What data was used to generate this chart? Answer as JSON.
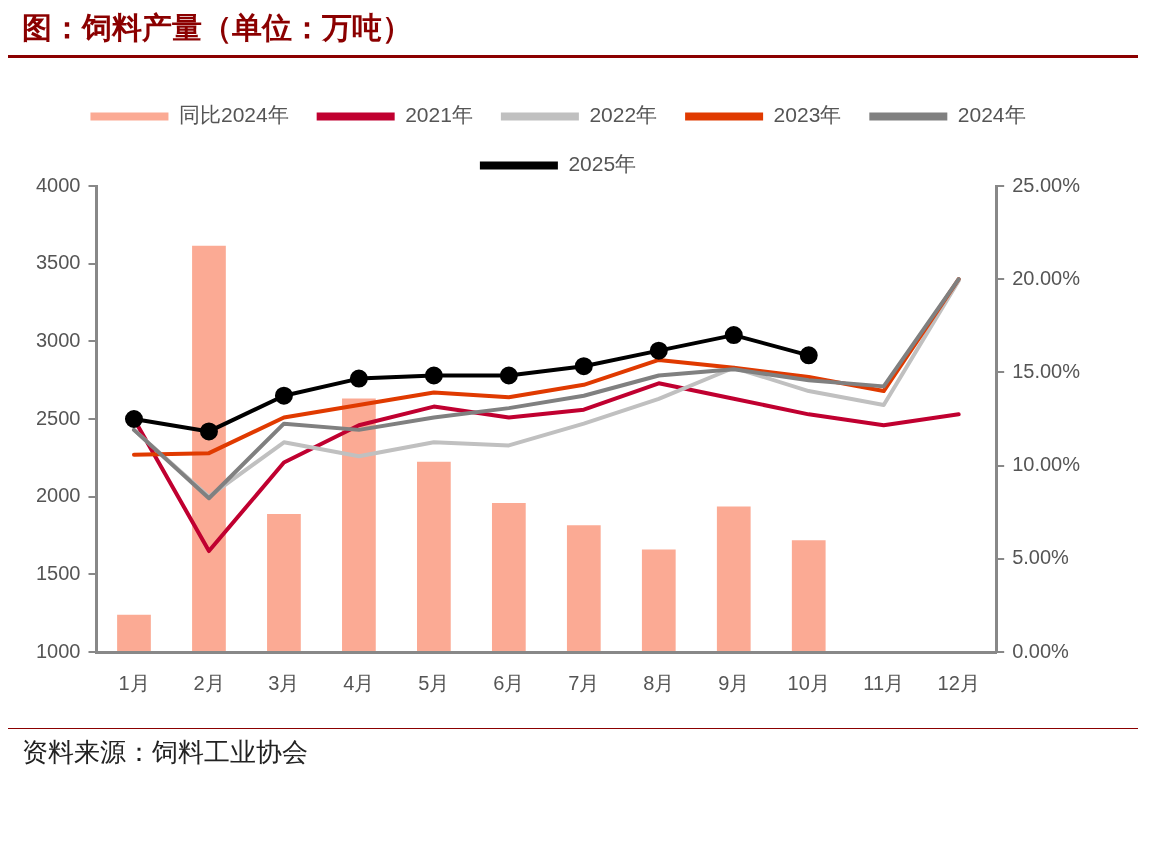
{
  "chart_data": {
    "type": "line",
    "title": "图：饲料产量（单位：万吨）",
    "annotations": [
      "资料来源：饲料工业协会"
    ],
    "categories": [
      "1月",
      "2月",
      "3月",
      "4月",
      "5月",
      "6月",
      "7月",
      "8月",
      "9月",
      "10月",
      "11月",
      "12月"
    ],
    "series": [
      {
        "name": "同比2024年",
        "type": "bar",
        "axis": "y2",
        "color": "#fbaa94",
        "values": [
          2.0,
          21.8,
          7.4,
          13.6,
          10.2,
          8.0,
          6.8,
          5.5,
          7.8,
          6.0,
          null,
          null
        ]
      },
      {
        "name": "2021年",
        "color": "#c00030",
        "marker": "none",
        "values": [
          2500,
          1650,
          2220,
          2460,
          2580,
          2510,
          2560,
          2730,
          2630,
          2530,
          2460,
          2530
        ]
      },
      {
        "name": "2022年",
        "color": "#c0c0c0",
        "marker": "none",
        "values": [
          2430,
          2000,
          2350,
          2260,
          2350,
          2330,
          2470,
          2630,
          2830,
          2680,
          2590,
          3390
        ]
      },
      {
        "name": "2023年",
        "color": "#e03a00",
        "marker": "none",
        "values": [
          2270,
          2280,
          2510,
          2590,
          2670,
          2640,
          2720,
          2880,
          2830,
          2770,
          2680,
          3400
        ]
      },
      {
        "name": "2024年",
        "color": "#808080",
        "marker": "none",
        "values": [
          2430,
          1990,
          2470,
          2430,
          2510,
          2570,
          2650,
          2780,
          2820,
          2750,
          2710,
          3400
        ]
      },
      {
        "name": "2025年",
        "color": "#000000",
        "marker": "circle",
        "values": [
          2500,
          2420,
          2650,
          2760,
          2780,
          2780,
          2840,
          2940,
          3040,
          2910,
          null,
          null
        ]
      }
    ],
    "ylim": [
      1000,
      4000
    ],
    "yticks": [
      1000,
      1500,
      2000,
      2500,
      3000,
      3500,
      4000
    ],
    "y2lim": [
      0,
      25
    ],
    "y2ticks": [
      {
        "value": 0,
        "label": "0.00%"
      },
      {
        "value": 5,
        "label": "5.00%"
      },
      {
        "value": 10,
        "label": "10.00%"
      },
      {
        "value": 15,
        "label": "15.00%"
      },
      {
        "value": 20,
        "label": "20.00%"
      },
      {
        "value": 25,
        "label": "25.00%"
      }
    ],
    "grid": false,
    "legend": "top"
  }
}
